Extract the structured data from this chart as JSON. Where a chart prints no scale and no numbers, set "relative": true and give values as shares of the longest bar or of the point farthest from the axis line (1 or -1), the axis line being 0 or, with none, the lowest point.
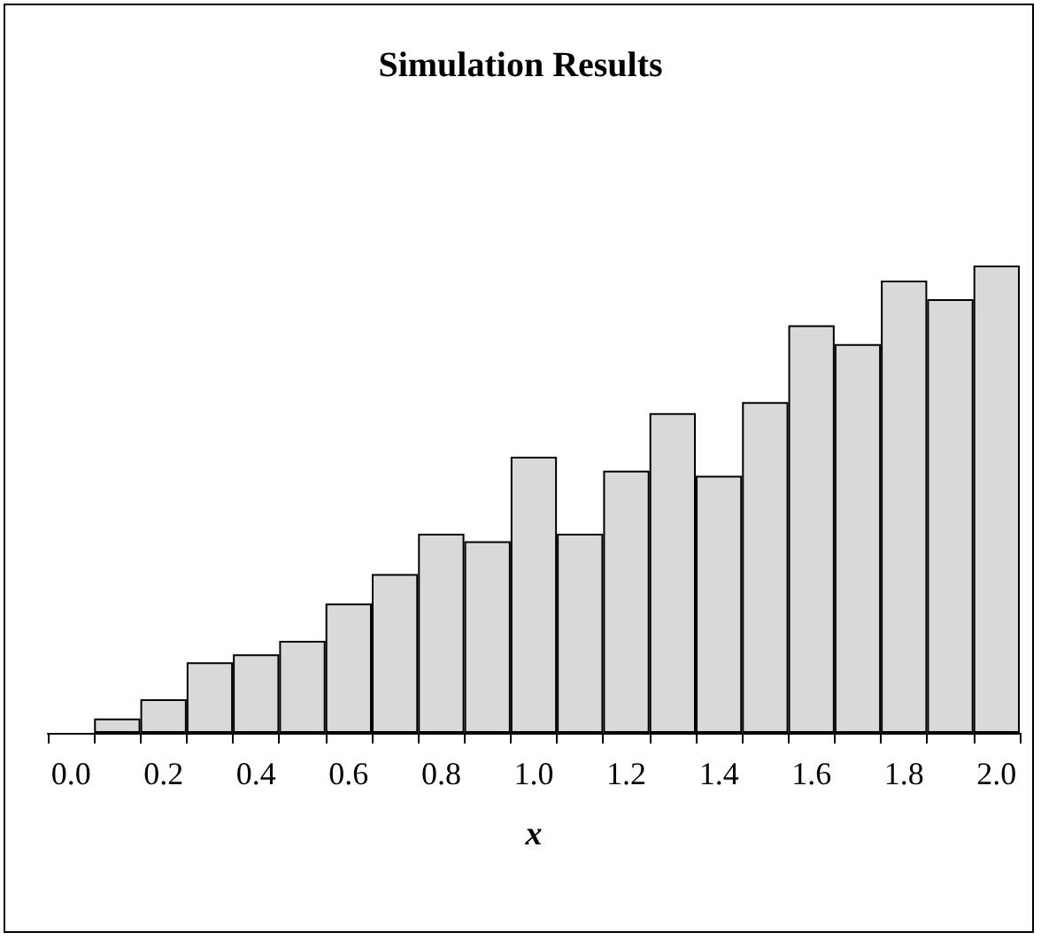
{
  "chart_data": {
    "type": "bar",
    "title": "Simulation Results",
    "xlabel": "x",
    "relative": true,
    "categories": [
      "0.0",
      null,
      "0.2",
      null,
      "0.4",
      null,
      "0.6",
      null,
      "0.8",
      null,
      "1.0",
      null,
      "1.2",
      null,
      "1.4",
      null,
      "1.6",
      null,
      "1.8",
      null,
      "2.0"
    ],
    "values": [
      null,
      0.031,
      0.072,
      0.151,
      0.168,
      0.197,
      0.277,
      0.34,
      0.426,
      0.41,
      0.591,
      0.426,
      0.561,
      0.684,
      0.55,
      0.708,
      0.872,
      0.832,
      0.968,
      0.928,
      1
    ],
    "color": "#d9d9d9",
    "grid": false
  }
}
